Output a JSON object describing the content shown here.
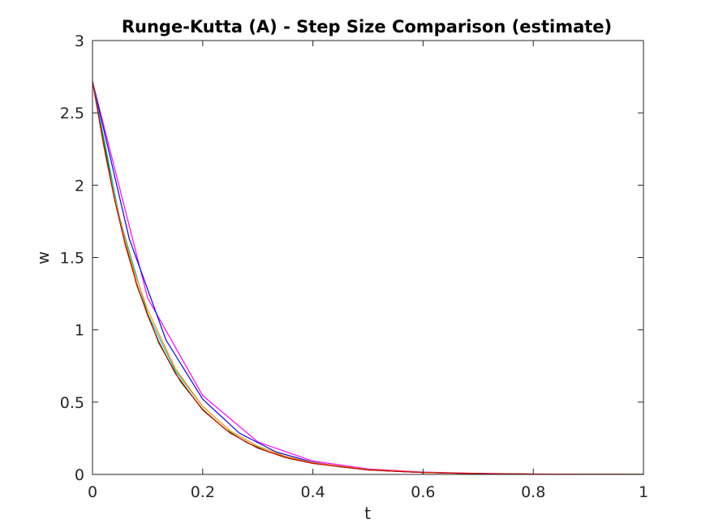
{
  "chart_data": {
    "type": "line",
    "title": "Runge-Kutta (A) - Step Size Comparison (estimate)",
    "xlabel": "t",
    "ylabel": "w",
    "xlim": [
      0,
      1
    ],
    "ylim": [
      0,
      3
    ],
    "xticks": [
      "0",
      "0.2",
      "0.4",
      "0.6",
      "0.8",
      "1"
    ],
    "yticks": [
      "0",
      "0.5",
      "1",
      "1.5",
      "2",
      "2.5",
      "3"
    ],
    "grid": false,
    "legend": "none",
    "series": [
      {
        "color": "#ff00ff",
        "x": [
          0,
          0.1,
          0.2,
          0.3,
          0.4,
          0.5,
          0.6,
          0.7,
          0.8,
          0.9,
          1.0
        ],
        "y": [
          2.718,
          1.22,
          0.545,
          0.225,
          0.092,
          0.038,
          0.016,
          0.007,
          0.003,
          0.001,
          0.0005
        ]
      },
      {
        "color": "#0000ff",
        "x": [
          0,
          0.0667,
          0.1333,
          0.2,
          0.2667,
          0.3333,
          0.4,
          0.4667,
          0.5333,
          0.6,
          0.6667,
          0.7333,
          0.8,
          0.8667,
          0.9333,
          1.0
        ],
        "y": [
          2.718,
          1.63,
          0.93,
          0.52,
          0.285,
          0.155,
          0.084,
          0.046,
          0.025,
          0.014,
          0.008,
          0.0045,
          0.0025,
          0.0014,
          0.0008,
          0.0005
        ]
      },
      {
        "color": "#00bfbf",
        "x": [
          0,
          0.05,
          0.1,
          0.15,
          0.2,
          0.25,
          0.3,
          0.35,
          0.4,
          0.45,
          0.5,
          0.55,
          0.6,
          0.65,
          0.7,
          0.75,
          0.8,
          0.85,
          0.9,
          0.95,
          1.0
        ],
        "y": [
          2.718,
          1.76,
          1.11,
          0.72,
          0.47,
          0.3,
          0.195,
          0.125,
          0.081,
          0.052,
          0.034,
          0.022,
          0.014,
          0.009,
          0.006,
          0.004,
          0.0025,
          0.0017,
          0.0011,
          0.0007,
          0.0005
        ]
      },
      {
        "color": "#008000",
        "x": [
          0,
          0.04,
          0.08,
          0.12,
          0.16,
          0.2,
          0.24,
          0.28,
          0.32,
          0.36,
          0.4,
          0.5,
          0.6,
          0.7,
          0.8,
          0.9,
          1.0
        ],
        "y": [
          2.718,
          1.91,
          1.31,
          0.91,
          0.64,
          0.45,
          0.315,
          0.22,
          0.155,
          0.108,
          0.076,
          0.031,
          0.013,
          0.0055,
          0.0023,
          0.001,
          0.0004
        ]
      },
      {
        "color": "#ff9900",
        "x": [
          0,
          0.025,
          0.05,
          0.075,
          0.1,
          0.15,
          0.2,
          0.25,
          0.3,
          0.35,
          0.4,
          0.5,
          0.6,
          0.7,
          0.8,
          0.9,
          1.0
        ],
        "y": [
          2.718,
          2.18,
          1.75,
          1.41,
          1.14,
          0.735,
          0.47,
          0.3,
          0.195,
          0.125,
          0.081,
          0.034,
          0.014,
          0.006,
          0.0025,
          0.001,
          0.0004
        ]
      },
      {
        "color": "#cc0000",
        "x": [
          0,
          0.02,
          0.04,
          0.06,
          0.08,
          0.1,
          0.12,
          0.15,
          0.2,
          0.25,
          0.3,
          0.35,
          0.4,
          0.5,
          0.6,
          0.7,
          0.8,
          0.9,
          1.0
        ],
        "y": [
          2.718,
          2.28,
          1.9,
          1.58,
          1.32,
          1.1,
          0.92,
          0.7,
          0.445,
          0.285,
          0.182,
          0.117,
          0.076,
          0.031,
          0.013,
          0.0055,
          0.0023,
          0.001,
          0.0004
        ]
      }
    ]
  }
}
